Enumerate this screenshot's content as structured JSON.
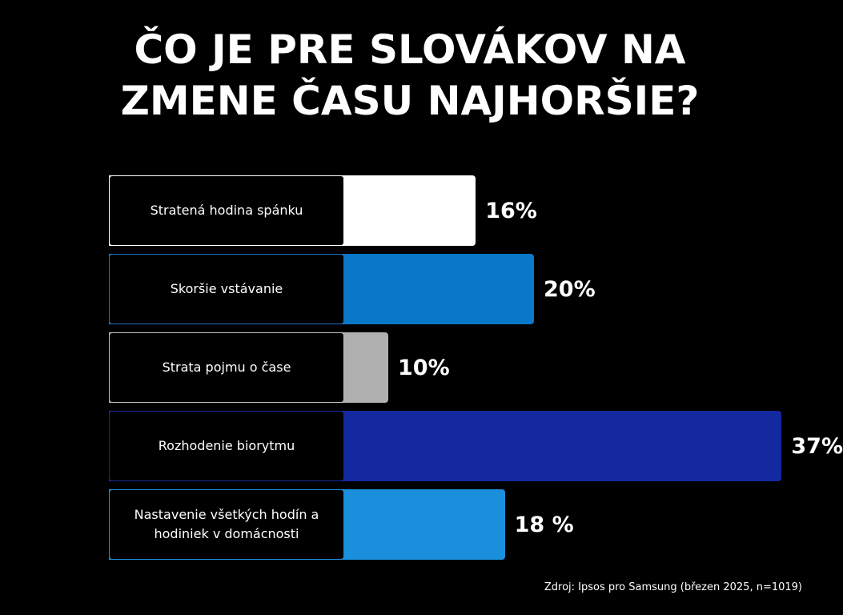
{
  "title_lines": [
    "ČO JE PRE SLOVÁKOV NA",
    "ZMENE ČASU NAJHORŠIE?"
  ],
  "source": "Zdroj: Ipsos pro Samsung (březen 2025, n=1019)",
  "chart_data": {
    "type": "bar",
    "orientation": "horizontal",
    "title": "ČO JE PRE SLOVÁKOV NA ZMENE ČASU NAJHORŠIE?",
    "categories": [
      "Stratená hodina spánku",
      "Skoršie vstávanie",
      "Strata pojmu o čase",
      "Rozhodenie biorytmu",
      "Nastavenie všetkých hodín a hodiniek v domácnosti"
    ],
    "values": [
      16,
      20,
      10,
      37,
      18
    ],
    "value_labels": [
      "16%",
      "20%",
      "10%",
      "37%",
      "18 %"
    ],
    "colors": [
      "#ffffff",
      "#0a77c9",
      "#b0b0b0",
      "#1428a0",
      "#1a8fdc"
    ],
    "border_colors": [
      "#ffffff",
      "#1f6fc4",
      "#bfbfbf",
      "#1428a0",
      "#1a8fdc"
    ],
    "unit": "%",
    "xlim": [
      0,
      37
    ]
  }
}
